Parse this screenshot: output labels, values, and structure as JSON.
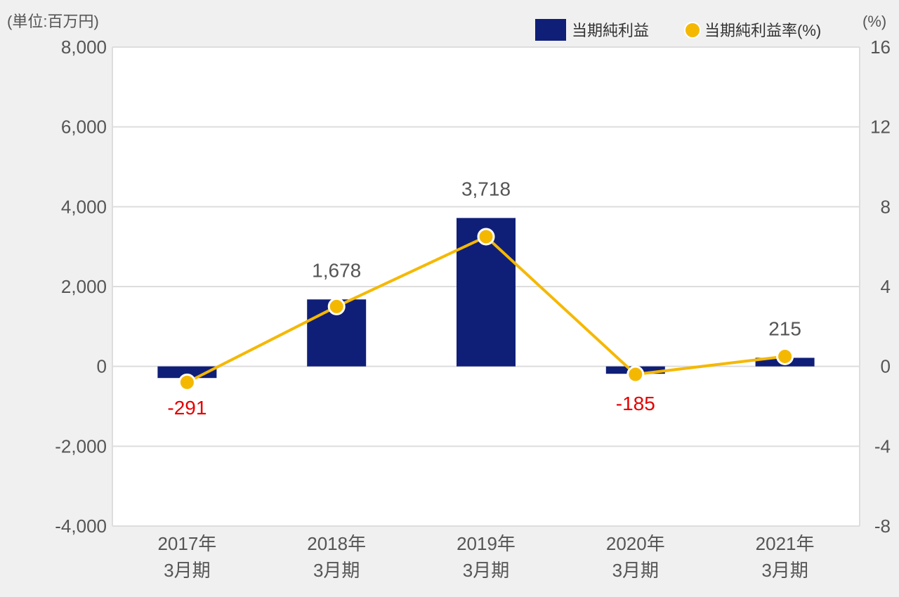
{
  "chart_data": {
    "type": "bar",
    "categories": [
      [
        "2017年",
        "3月期"
      ],
      [
        "2018年",
        "3月期"
      ],
      [
        "2019年",
        "3月期"
      ],
      [
        "2020年",
        "3月期"
      ],
      [
        "2021年",
        "3月期"
      ]
    ],
    "series": [
      {
        "name": "当期純利益",
        "type": "bar",
        "axis": "left",
        "values": [
          -291,
          1678,
          3718,
          -185,
          215
        ],
        "data_labels": [
          "-291",
          "1,678",
          "3,718",
          "-185",
          "215"
        ],
        "color": "#0f1f78"
      },
      {
        "name": "当期純利益率(%)",
        "type": "line",
        "axis": "right",
        "values": [
          -0.8,
          3.0,
          6.5,
          -0.4,
          0.5
        ],
        "color": "#f5b800"
      }
    ],
    "y_left": {
      "label": "(単位:百万円)",
      "range": [
        -4000,
        8000
      ],
      "ticks": [
        "-4,000",
        "-2,000",
        "0",
        "2,000",
        "4,000",
        "6,000",
        "8,000"
      ],
      "tick_values": [
        -4000,
        -2000,
        0,
        2000,
        4000,
        6000,
        8000
      ]
    },
    "y_right": {
      "label": "(%)",
      "range": [
        -8,
        16
      ],
      "ticks": [
        "-8",
        "-4",
        "0",
        "4",
        "8",
        "12",
        "16"
      ],
      "tick_values": [
        -8,
        -4,
        0,
        4,
        8,
        12,
        16
      ]
    },
    "legend": {
      "bar_label": "当期純利益",
      "line_label": "当期純利益率",
      "line_label_suffix": "(%)"
    },
    "colors": {
      "negative_label": "#e60000",
      "positive_label": "#555555",
      "grid": "#dddddd",
      "plot_bg": "#ffffff"
    },
    "grid": true
  }
}
